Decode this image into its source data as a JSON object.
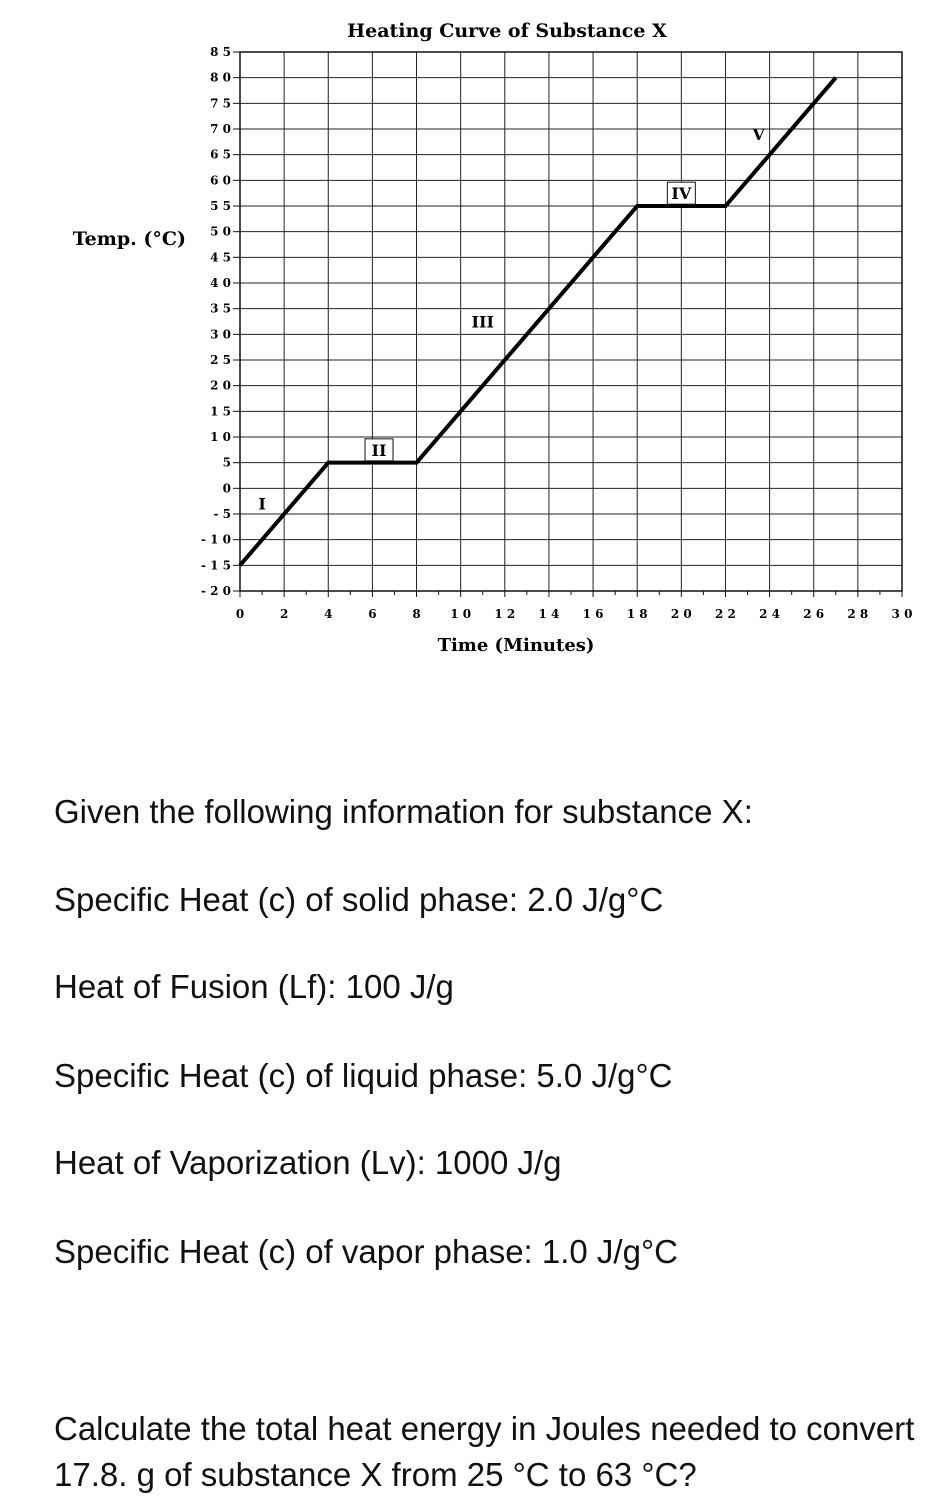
{
  "chart_data": {
    "type": "line",
    "title": "Heating Curve of Substance X",
    "xlabel": "Time (Minutes)",
    "ylabel": "Temp. (°C)",
    "xlim": [
      0,
      30
    ],
    "ylim": [
      -20,
      85
    ],
    "grid": true,
    "x_ticks": [
      0,
      2,
      4,
      6,
      8,
      10,
      12,
      14,
      16,
      18,
      20,
      22,
      24,
      26,
      28,
      30
    ],
    "x_tick_labels": [
      "0",
      "2",
      "4",
      "6",
      "8",
      "1 0",
      "1 2",
      "1 4",
      "1 6",
      "1 8",
      "2 0",
      "2 2",
      "2 4",
      "2 6",
      "2 8",
      "3 0"
    ],
    "y_ticks": [
      85,
      80,
      75,
      70,
      65,
      60,
      55,
      50,
      45,
      40,
      35,
      30,
      25,
      20,
      15,
      10,
      5,
      0,
      -5,
      -10,
      -15,
      -20
    ],
    "y_tick_labels": [
      "8 5",
      "8 0",
      "7 5",
      "7 0",
      "6 5",
      "6 0",
      "5 5",
      "5 0",
      "4 5",
      "4 0",
      "3 5",
      "3 0",
      "2 5",
      "2 0",
      "1 5",
      "1 0",
      "5",
      "0",
      "- 5",
      "- 1 0",
      "- 1 5",
      "- 2 0"
    ],
    "series": [
      {
        "x": [
          0,
          4,
          8,
          18,
          22,
          27
        ],
        "y": [
          -15,
          5,
          5,
          55,
          55,
          80
        ]
      }
    ],
    "annotations": [
      {
        "text": "I",
        "x": 1,
        "y": -3,
        "boxed": false
      },
      {
        "text": "II",
        "x": 6.3,
        "y": 7.5,
        "boxed": true
      },
      {
        "text": "III",
        "x": 11,
        "y": 32.5,
        "boxed": false
      },
      {
        "text": "IV",
        "x": 20,
        "y": 57.5,
        "boxed": true
      },
      {
        "text": "V",
        "x": 23.5,
        "y": 69,
        "boxed": false
      }
    ]
  },
  "info": {
    "intro": "Given the following information for substance X:",
    "lines": [
      "Specific Heat (c) of solid phase: 2.0 J/g°C",
      "Heat of Fusion (Lf): 100 J/g",
      "Specific Heat (c) of liquid phase: 5.0 J/g°C",
      "Heat of Vaporization (Lv): 1000 J/g",
      "Specific Heat (c) of vapor phase: 1.0 J/g°C"
    ],
    "question": "Calculate the total heat energy in Joules needed to convert 17.8. g of substance X from 25 °C to 63 °C?"
  }
}
